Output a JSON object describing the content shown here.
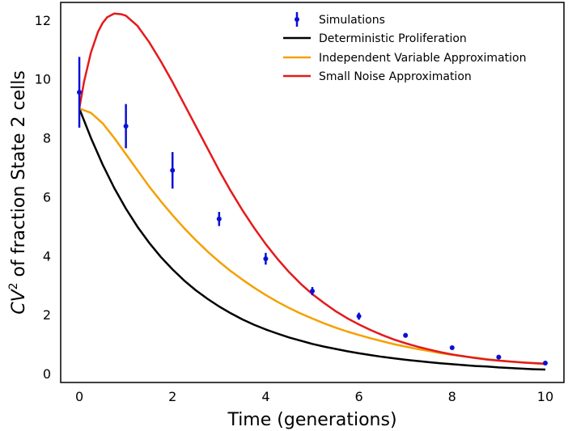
{
  "chart_data": {
    "type": "line",
    "xlabel": "Time (generations)",
    "ylabel_main": "CV",
    "ylabel_sup": "2",
    "ylabel_rest": " of fraction State 2 cells",
    "xlim": [
      -0.4,
      10.4
    ],
    "ylim": [
      -0.3,
      12.6
    ],
    "xticks": [
      0,
      2,
      4,
      6,
      8,
      10
    ],
    "yticks": [
      0,
      2,
      4,
      6,
      8,
      10,
      12
    ],
    "series": [
      {
        "name": "Deterministic Proliferation",
        "color": "#000000",
        "x": [
          0,
          0.25,
          0.5,
          0.75,
          1,
          1.25,
          1.5,
          1.75,
          2,
          2.25,
          2.5,
          2.75,
          3,
          3.25,
          3.5,
          3.75,
          4,
          4.25,
          4.5,
          4.75,
          5,
          5.25,
          5.5,
          5.75,
          6,
          6.25,
          6.5,
          6.75,
          7,
          7.25,
          7.5,
          7.75,
          8,
          8.25,
          8.5,
          8.75,
          9,
          9.25,
          9.5,
          9.75,
          10
        ],
        "y": [
          9.0,
          8.0,
          7.1,
          6.3,
          5.6,
          4.98,
          4.44,
          3.96,
          3.54,
          3.16,
          2.83,
          2.54,
          2.28,
          2.05,
          1.84,
          1.66,
          1.5,
          1.36,
          1.23,
          1.12,
          1.01,
          0.92,
          0.84,
          0.76,
          0.69,
          0.63,
          0.57,
          0.52,
          0.47,
          0.43,
          0.39,
          0.35,
          0.32,
          0.29,
          0.26,
          0.24,
          0.21,
          0.19,
          0.17,
          0.15,
          0.14
        ]
      },
      {
        "name": "Independent Variable Approximation",
        "color": "#f5a000",
        "x": [
          0,
          0.25,
          0.5,
          0.75,
          1,
          1.25,
          1.5,
          1.75,
          2,
          2.25,
          2.5,
          2.75,
          3,
          3.25,
          3.5,
          3.75,
          4,
          4.25,
          4.5,
          4.75,
          5,
          5.25,
          5.5,
          5.75,
          6,
          6.25,
          6.5,
          6.75,
          7,
          7.25,
          7.5,
          7.75,
          8,
          8.25,
          8.5,
          8.75,
          9,
          9.25,
          9.5,
          9.75,
          10
        ],
        "y": [
          9.0,
          8.85,
          8.5,
          8.0,
          7.45,
          6.9,
          6.35,
          5.85,
          5.38,
          4.94,
          4.53,
          4.15,
          3.8,
          3.48,
          3.19,
          2.92,
          2.67,
          2.44,
          2.23,
          2.04,
          1.87,
          1.71,
          1.56,
          1.43,
          1.31,
          1.2,
          1.1,
          1.0,
          0.92,
          0.84,
          0.77,
          0.7,
          0.64,
          0.59,
          0.54,
          0.49,
          0.45,
          0.41,
          0.38,
          0.35,
          0.32
        ]
      },
      {
        "name": "Small Noise Approximation",
        "color": "#e41a1c",
        "x": [
          0,
          0.1,
          0.25,
          0.4,
          0.5,
          0.6,
          0.75,
          0.9,
          1,
          1.25,
          1.5,
          1.75,
          2,
          2.25,
          2.5,
          2.75,
          3,
          3.25,
          3.5,
          3.75,
          4,
          4.25,
          4.5,
          4.75,
          5,
          5.25,
          5.5,
          5.75,
          6,
          6.25,
          6.5,
          6.75,
          7,
          7.25,
          7.5,
          7.75,
          8,
          8.25,
          8.5,
          8.75,
          9,
          9.25,
          9.5,
          9.75,
          10
        ],
        "y": [
          9.0,
          9.9,
          10.9,
          11.6,
          11.9,
          12.1,
          12.22,
          12.2,
          12.15,
          11.8,
          11.25,
          10.6,
          9.9,
          9.15,
          8.4,
          7.65,
          6.9,
          6.2,
          5.55,
          4.95,
          4.4,
          3.9,
          3.45,
          3.05,
          2.7,
          2.4,
          2.12,
          1.88,
          1.67,
          1.48,
          1.31,
          1.16,
          1.03,
          0.92,
          0.82,
          0.73,
          0.65,
          0.59,
          0.53,
          0.48,
          0.44,
          0.41,
          0.38,
          0.36,
          0.34
        ]
      }
    ],
    "simulations": {
      "name": "Simulations",
      "color": "#0a10d6",
      "x": [
        0,
        1,
        2,
        3,
        4,
        5,
        6,
        7,
        8,
        9,
        10
      ],
      "y": [
        9.55,
        8.4,
        6.9,
        5.25,
        3.9,
        2.8,
        1.95,
        1.3,
        0.88,
        0.56,
        0.36
      ],
      "err": [
        1.2,
        0.75,
        0.62,
        0.24,
        0.2,
        0.14,
        0.12,
        0.08,
        0.06,
        0.05,
        0.04
      ]
    },
    "legend_position": "top-right"
  }
}
